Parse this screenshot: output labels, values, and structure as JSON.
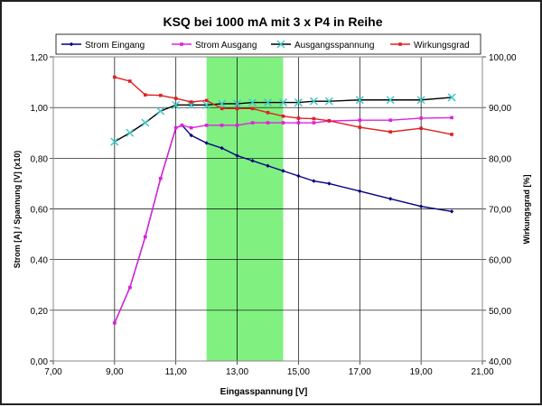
{
  "chart_data": {
    "type": "line",
    "title": "KSQ bei 1000 mA mit 3 x P4 in Reihe",
    "xlabel": "Eingasspannung [V]",
    "ylabel": "Strom [A] / Spannung [V] (x10)",
    "y2label": "Wirkungsgrad [%]",
    "xlim": [
      7,
      21
    ],
    "ylim": [
      0,
      1.2
    ],
    "y2lim": [
      40,
      100
    ],
    "xticks": [
      "7,00",
      "9,00",
      "11,00",
      "13,00",
      "15,00",
      "17,00",
      "19,00",
      "21,00"
    ],
    "yticks": [
      "0,00",
      "0,20",
      "0,40",
      "0,60",
      "0,80",
      "1,00",
      "1,20"
    ],
    "y2ticks": [
      "40,00",
      "50,00",
      "60,00",
      "70,00",
      "80,00",
      "90,00",
      "100,00"
    ],
    "grid": true,
    "legend": "top",
    "highlight_band": {
      "x": [
        12,
        14.5
      ],
      "color": "#80f080"
    },
    "series": [
      {
        "name": "Strom Eingang",
        "axis": "left",
        "color": "#000080",
        "marker": "diamond",
        "x": [
          9,
          9.5,
          10,
          10.5,
          11,
          11.2,
          11.5,
          12,
          12.5,
          13,
          13.5,
          14,
          14.5,
          15,
          15.5,
          16,
          17,
          18,
          19,
          20
        ],
        "y": [
          0.15,
          0.29,
          0.49,
          0.72,
          0.92,
          0.93,
          0.89,
          0.86,
          0.84,
          0.81,
          0.79,
          0.77,
          0.75,
          0.73,
          0.71,
          0.7,
          0.67,
          0.64,
          0.61,
          0.59
        ]
      },
      {
        "name": "Strom Ausgang",
        "axis": "left",
        "color": "#e020e0",
        "marker": "square",
        "x": [
          9,
          9.5,
          10,
          10.5,
          11,
          11.2,
          11.5,
          12,
          12.5,
          13,
          13.5,
          14,
          14.5,
          15,
          15.5,
          16,
          17,
          18,
          19,
          20
        ],
        "y": [
          0.15,
          0.29,
          0.49,
          0.72,
          0.92,
          0.93,
          0.92,
          0.93,
          0.93,
          0.93,
          0.94,
          0.94,
          0.94,
          0.94,
          0.94,
          0.947,
          0.95,
          0.95,
          0.958,
          0.96
        ]
      },
      {
        "name": "Ausgangsspannung",
        "axis": "left",
        "color": "#000000",
        "marker": "x",
        "markerColor": "#40c8c8",
        "x": [
          9,
          9.5,
          10,
          10.5,
          11,
          11.5,
          12,
          12.5,
          13,
          13.5,
          14,
          14.5,
          15,
          15.5,
          16,
          17,
          18,
          19,
          20
        ],
        "y": [
          0.865,
          0.9,
          0.94,
          0.986,
          1.01,
          1.01,
          1.01,
          1.015,
          1.015,
          1.02,
          1.02,
          1.02,
          1.02,
          1.025,
          1.025,
          1.03,
          1.03,
          1.03,
          1.04
        ]
      },
      {
        "name": "Wirkungsgrad",
        "axis": "right",
        "color": "#e02020",
        "marker": "square",
        "x": [
          9,
          9.5,
          10,
          10.5,
          11,
          11.5,
          12,
          12.5,
          13,
          13.5,
          14,
          14.5,
          15,
          15.5,
          16,
          17,
          18,
          19,
          20
        ],
        "y": [
          96.0,
          95.2,
          92.5,
          92.4,
          91.8,
          91.1,
          91.4,
          89.8,
          89.8,
          89.8,
          89.0,
          88.3,
          87.9,
          87.8,
          87.4,
          86.1,
          85.2,
          85.9,
          84.7
        ]
      }
    ]
  }
}
